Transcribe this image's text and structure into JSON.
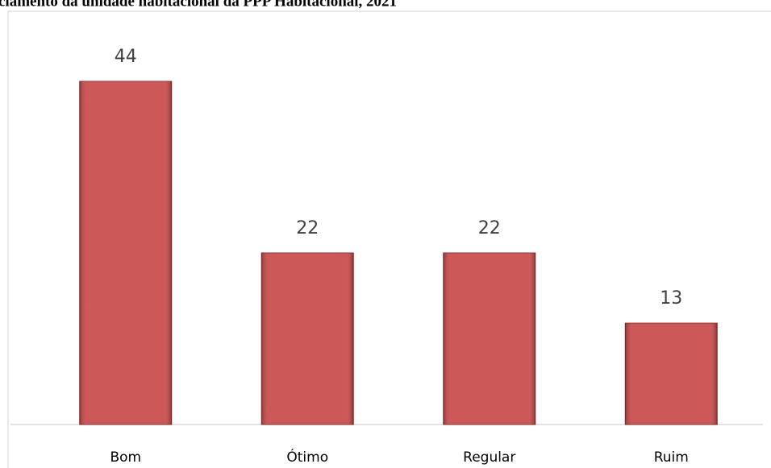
{
  "chart_data": {
    "type": "bar",
    "title": "ciamento da unidade habitacional da PPP Habitacional, 2021",
    "categories": [
      "Bom",
      "Ótimo",
      "Regular",
      "Ruim"
    ],
    "values": [
      44,
      22,
      22,
      13
    ],
    "color": "#c94a4a"
  }
}
